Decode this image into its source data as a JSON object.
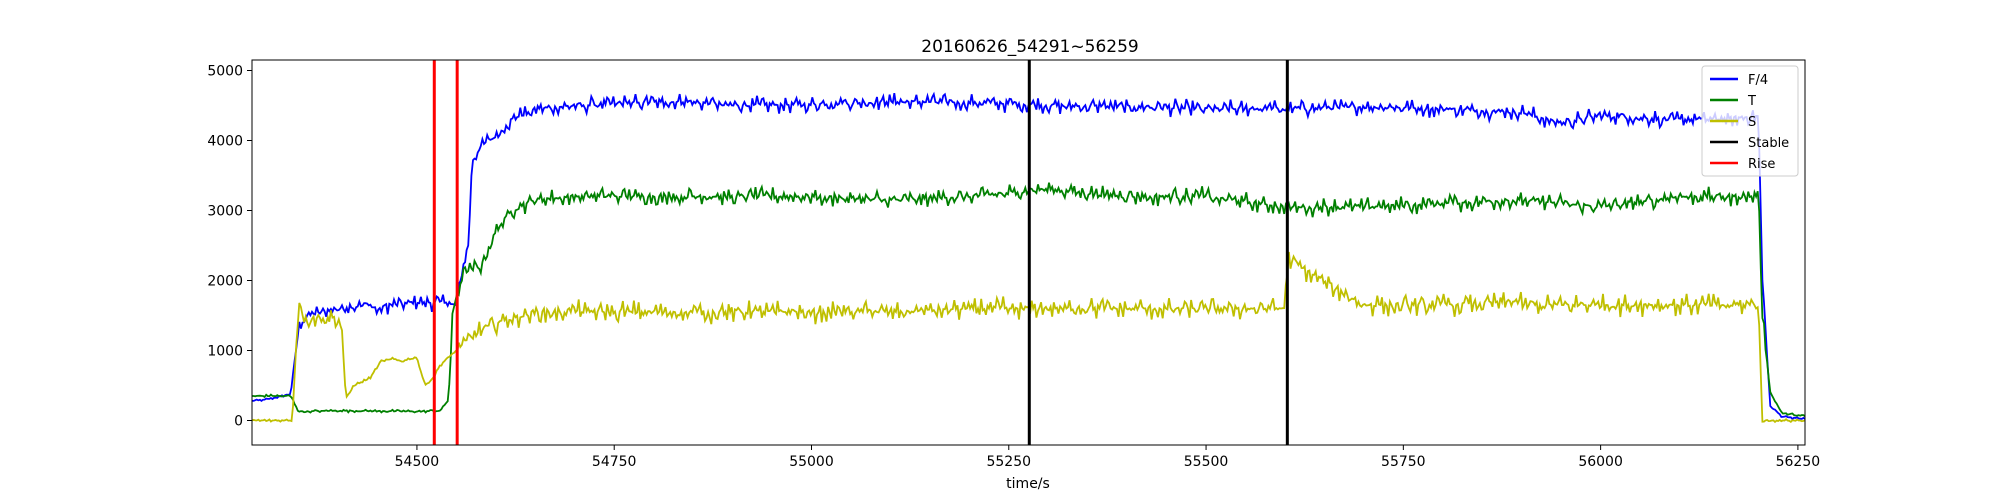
{
  "chart_data": {
    "type": "line",
    "title": "20160626_54291~56259",
    "xlabel": "time/s",
    "ylabel": "",
    "xlim": [
      54291,
      56259
    ],
    "ylim": [
      -350,
      5150
    ],
    "xticks": [
      54500,
      54750,
      55000,
      55250,
      55500,
      55750,
      56000,
      56250
    ],
    "yticks": [
      0,
      1000,
      2000,
      3000,
      4000,
      5000
    ],
    "legend_position": "top-right",
    "series": [
      {
        "name": "F/4",
        "color": "#0000ff",
        "noise": 140,
        "x": [
          54291,
          54310,
          54340,
          54350,
          54360,
          54400,
          54440,
          54450,
          54460,
          54500,
          54540,
          54548,
          54552,
          54556,
          54560,
          54565,
          54570,
          54580,
          54590,
          54600,
          54620,
          54650,
          54700,
          54750,
          54800,
          54850,
          54900,
          55000,
          55100,
          55200,
          55300,
          55400,
          55500,
          55600,
          55700,
          55800,
          55900,
          55950,
          56000,
          56100,
          56150,
          56200,
          56205,
          56215,
          56230,
          56259
        ],
        "y": [
          280,
          300,
          380,
          1300,
          1500,
          1600,
          1650,
          1580,
          1650,
          1680,
          1700,
          1600,
          1800,
          2000,
          2300,
          2500,
          3700,
          3900,
          4000,
          4050,
          4300,
          4450,
          4500,
          4520,
          4550,
          4550,
          4500,
          4520,
          4550,
          4550,
          4500,
          4480,
          4450,
          4450,
          4480,
          4450,
          4400,
          4250,
          4350,
          4300,
          4300,
          4350,
          2000,
          200,
          60,
          20
        ]
      },
      {
        "name": "T",
        "color": "#008000",
        "noise": 150,
        "x": [
          54291,
          54310,
          54340,
          54350,
          54400,
          54500,
          54530,
          54540,
          54545,
          54550,
          54560,
          54580,
          54600,
          54620,
          54650,
          54700,
          54750,
          54850,
          55000,
          55100,
          55200,
          55300,
          55400,
          55500,
          55600,
          55700,
          55800,
          55900,
          56000,
          56100,
          56200,
          56205,
          56215,
          56230,
          56259
        ],
        "y": [
          350,
          350,
          350,
          130,
          140,
          130,
          140,
          300,
          1400,
          1800,
          2100,
          2200,
          2700,
          3000,
          3150,
          3200,
          3200,
          3200,
          3200,
          3150,
          3200,
          3300,
          3200,
          3200,
          3050,
          3050,
          3100,
          3150,
          3050,
          3200,
          3200,
          1500,
          400,
          100,
          60
        ]
      },
      {
        "name": "S",
        "color": "#bfbf00",
        "noise": 180,
        "x": [
          54291,
          54330,
          54342,
          54350,
          54360,
          54400,
          54405,
          54410,
          54420,
          54440,
          54455,
          54470,
          54480,
          54500,
          54510,
          54520,
          54530,
          54550,
          54570,
          54600,
          54650,
          54700,
          54800,
          54900,
          55000,
          55100,
          55200,
          55300,
          55400,
          55500,
          55598,
          55605,
          55700,
          55800,
          55890,
          55900,
          56000,
          56100,
          56200,
          56205,
          56259
        ],
        "y": [
          0,
          0,
          0,
          1700,
          1450,
          1480,
          1300,
          300,
          500,
          600,
          850,
          880,
          850,
          900,
          500,
          600,
          800,
          1000,
          1200,
          1400,
          1550,
          1550,
          1550,
          1550,
          1550,
          1550,
          1600,
          1600,
          1600,
          1600,
          1600,
          2300,
          1650,
          1650,
          1700,
          1650,
          1650,
          1650,
          1650,
          0,
          0
        ]
      }
    ],
    "vlines": [
      {
        "name": "Stable",
        "color": "#000000",
        "x": [
          55276,
          55603
        ]
      },
      {
        "name": "Rise",
        "color": "#ff0000",
        "x": [
          54522,
          54551
        ]
      }
    ],
    "legend": [
      {
        "label": "F/4",
        "color": "#0000ff"
      },
      {
        "label": "T",
        "color": "#008000"
      },
      {
        "label": "S",
        "color": "#bfbf00"
      },
      {
        "label": "Stable",
        "color": "#000000"
      },
      {
        "label": "Rise",
        "color": "#ff0000"
      }
    ]
  }
}
